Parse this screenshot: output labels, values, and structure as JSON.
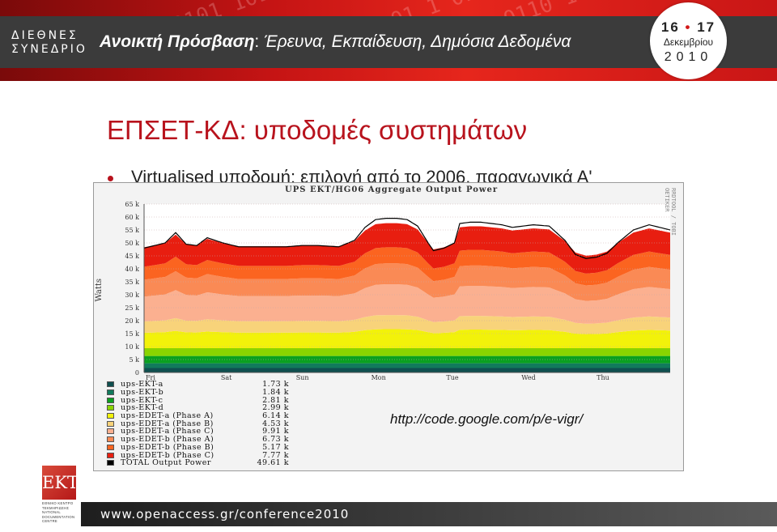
{
  "header": {
    "conference_line1": "ΔΙΕΘΝΕΣ",
    "conference_line2": "ΣΥΝΕΔΡΙΟ",
    "title_bold": "Ανοικτή Πρόσβαση",
    "title_sep": ": ",
    "title_rest": "Έρευνα, Εκπαίδευση, Δημόσια Δεδομένα",
    "date_day1": "16",
    "date_day2": "17",
    "date_month": "Δεκεμβρίου",
    "date_year": "2010"
  },
  "slide": {
    "title": "ΕΠΣΕΤ-ΚΔ: υποδομές συστημάτων",
    "bullet": "Virtualised υποδομή: επιλογή από το 2006, παραγωγικά Α'",
    "url": "http://code.google.com/p/e-vigr/"
  },
  "footer": {
    "text": "www.openaccess.gr/conference2010",
    "logo": "ΕΚΤ",
    "logo_caption": "ΕΘΝΙΚΟ ΚΕΝΤΡΟ ΤΕΚΜΗΡΙΩΣΗΣ NATIONAL DOCUMENTATION CENTRE"
  },
  "chart_data": {
    "type": "area",
    "stacked": true,
    "title": "UPS EKT/HG06 Aggregate Output Power",
    "side_label": "RRDTOOL / TOBI OETIKER",
    "ylabel": "Watts",
    "ylim": [
      0,
      65000
    ],
    "yticks": [
      "0",
      "5 k",
      "10 k",
      "15 k",
      "20 k",
      "25 k",
      "30 k",
      "35 k",
      "40 k",
      "45 k",
      "50 k",
      "55 k",
      "60 k",
      "65 k"
    ],
    "x": [
      "Fri",
      "Sat",
      "Sun",
      "Mon",
      "Tue",
      "Wed",
      "Thu"
    ],
    "grid": true,
    "legend": "bottom-left",
    "series": [
      {
        "name": "ups-EKT-a",
        "value": "1.73 k",
        "color": "#0f4f4f"
      },
      {
        "name": "ups-EKT-b",
        "value": "1.84 k",
        "color": "#117a5c"
      },
      {
        "name": "ups-EKT-c",
        "value": "2.81 k",
        "color": "#0aa020"
      },
      {
        "name": "ups-EKT-d",
        "value": "2.99 k",
        "color": "#8ad400"
      },
      {
        "name": "ups-EDET-a (Phase A)",
        "value": "6.14 k",
        "color": "#f2f20a"
      },
      {
        "name": "ups-EDET-a (Phase B)",
        "value": "4.53 k",
        "color": "#f8d37a"
      },
      {
        "name": "ups-EDET-a (Phase C)",
        "value": "9.91 k",
        "color": "#fbb090"
      },
      {
        "name": "ups-EDET-b (Phase A)",
        "value": "6.73 k",
        "color": "#fa8a55"
      },
      {
        "name": "ups-EDET-b (Phase B)",
        "value": "5.17 k",
        "color": "#fb6420"
      },
      {
        "name": "ups-EDET-b (Phase C)",
        "value": "7.77 k",
        "color": "#e81e10"
      },
      {
        "name": "TOTAL Output Power",
        "value": "49.61 k",
        "color": "#000000"
      }
    ],
    "total_profile_x": [
      0,
      4,
      6,
      8,
      10,
      12,
      15,
      18,
      22,
      27,
      30,
      33,
      37,
      40,
      42,
      44,
      46,
      48,
      50,
      52,
      54,
      55,
      57,
      59,
      60,
      62,
      64,
      66,
      68,
      70,
      72,
      74,
      77,
      80,
      82,
      84,
      86,
      88,
      90,
      93,
      96,
      100
    ],
    "total_profile_y": [
      48000,
      50000,
      54000,
      49500,
      49000,
      52000,
      50000,
      48500,
      48500,
      48500,
      49000,
      49000,
      48500,
      51000,
      56000,
      59000,
      59500,
      59500,
      59000,
      56500,
      50000,
      47000,
      48000,
      50000,
      57500,
      58000,
      58000,
      57500,
      57000,
      56000,
      56500,
      57000,
      56500,
      51000,
      45500,
      44000,
      44500,
      46000,
      50000,
      55000,
      57000,
      55000
    ]
  }
}
